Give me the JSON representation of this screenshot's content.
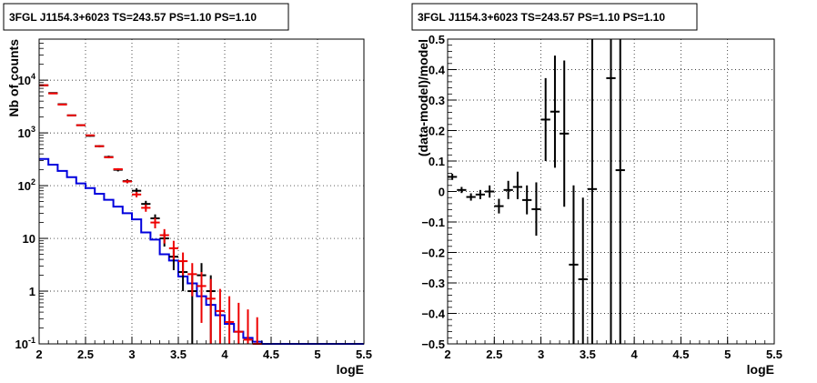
{
  "chart_data": [
    {
      "type": "line",
      "title": "3FGL J1154.3+6023 TS=243.57 PS=1.10 PS=1.10",
      "xlabel": "logE",
      "ylabel": "Nb of counts",
      "xlim": [
        2,
        5.5
      ],
      "ylim": [
        0.1,
        60000
      ],
      "yscale": "log",
      "grid": true,
      "x_ticks": [
        "2",
        "2.5",
        "3",
        "3.5",
        "4",
        "4.5",
        "5",
        "5.5"
      ],
      "y_ticks": [
        {
          "v": 0.1,
          "label": "10",
          "exp": "-1"
        },
        {
          "v": 1,
          "label": "1",
          "exp": ""
        },
        {
          "v": 10,
          "label": "10",
          "exp": ""
        },
        {
          "v": 100,
          "label": "10",
          "exp": "2"
        },
        {
          "v": 1000,
          "label": "10",
          "exp": "3"
        },
        {
          "v": 10000,
          "label": "10",
          "exp": "4"
        }
      ],
      "colors": {
        "data": "#000000",
        "model_total": "#ee0000",
        "model_source": "#0000dd"
      },
      "data_points": [
        {
          "x": 2.05,
          "y": 8000,
          "lo": 7850,
          "hi": 8150
        },
        {
          "x": 2.15,
          "y": 5700,
          "lo": 5580,
          "hi": 5820
        },
        {
          "x": 2.25,
          "y": 3500,
          "lo": 3420,
          "hi": 3580
        },
        {
          "x": 2.35,
          "y": 2150,
          "lo": 2090,
          "hi": 2210
        },
        {
          "x": 2.45,
          "y": 1400,
          "lo": 1350,
          "hi": 1450
        },
        {
          "x": 2.55,
          "y": 880,
          "lo": 850,
          "hi": 910
        },
        {
          "x": 2.65,
          "y": 560,
          "lo": 535,
          "hi": 585
        },
        {
          "x": 2.75,
          "y": 350,
          "lo": 330,
          "hi": 370
        },
        {
          "x": 2.85,
          "y": 200,
          "lo": 186,
          "hi": 214
        },
        {
          "x": 2.95,
          "y": 122,
          "lo": 111,
          "hi": 133
        },
        {
          "x": 3.05,
          "y": 80,
          "lo": 71,
          "hi": 89
        },
        {
          "x": 3.15,
          "y": 45,
          "lo": 38.5,
          "hi": 51.5
        },
        {
          "x": 3.25,
          "y": 24,
          "lo": 19.5,
          "hi": 28.5
        },
        {
          "x": 3.35,
          "y": 10,
          "lo": 7,
          "hi": 13
        },
        {
          "x": 3.45,
          "y": 4.5,
          "lo": 2.5,
          "hi": 6.5
        },
        {
          "x": 3.55,
          "y": 2.3,
          "lo": 1.0,
          "hi": 3.6
        },
        {
          "x": 3.65,
          "y": 1.0,
          "lo": 0.1,
          "hi": 2.0
        },
        {
          "x": 3.75,
          "y": 2.0,
          "lo": 0.6,
          "hi": 3.4
        },
        {
          "x": 3.85,
          "y": 1.0,
          "lo": 0.1,
          "hi": 2.0
        }
      ],
      "model_points": [
        {
          "x": 2.05,
          "y": 8000,
          "lo": 7900,
          "hi": 8100
        },
        {
          "x": 2.15,
          "y": 5600,
          "lo": 5520,
          "hi": 5680
        },
        {
          "x": 2.25,
          "y": 3450,
          "lo": 3400,
          "hi": 3500
        },
        {
          "x": 2.35,
          "y": 2150,
          "lo": 2120,
          "hi": 2180
        },
        {
          "x": 2.45,
          "y": 1400,
          "lo": 1380,
          "hi": 1420
        },
        {
          "x": 2.55,
          "y": 900,
          "lo": 885,
          "hi": 915
        },
        {
          "x": 2.65,
          "y": 560,
          "lo": 550,
          "hi": 570
        },
        {
          "x": 2.75,
          "y": 345,
          "lo": 338,
          "hi": 352
        },
        {
          "x": 2.85,
          "y": 205,
          "lo": 198,
          "hi": 212
        },
        {
          "x": 2.95,
          "y": 120,
          "lo": 112,
          "hi": 128
        },
        {
          "x": 3.05,
          "y": 68,
          "lo": 60,
          "hi": 76
        },
        {
          "x": 3.15,
          "y": 38,
          "lo": 32,
          "hi": 44
        },
        {
          "x": 3.25,
          "y": 20,
          "lo": 15.5,
          "hi": 24.5
        },
        {
          "x": 3.35,
          "y": 11.5,
          "lo": 8,
          "hi": 15
        },
        {
          "x": 3.45,
          "y": 6.5,
          "lo": 4,
          "hi": 9
        },
        {
          "x": 3.55,
          "y": 3.7,
          "lo": 2.0,
          "hi": 5.4
        },
        {
          "x": 3.65,
          "y": 2.1,
          "lo": 0.8,
          "hi": 3.4
        },
        {
          "x": 3.75,
          "y": 1.25,
          "lo": 0.25,
          "hi": 2.3
        },
        {
          "x": 3.85,
          "y": 0.72,
          "lo": 0.1,
          "hi": 1.7
        },
        {
          "x": 3.95,
          "y": 0.42,
          "lo": 0.1,
          "hi": 1.1
        },
        {
          "x": 4.05,
          "y": 0.26,
          "lo": 0.1,
          "hi": 0.8
        },
        {
          "x": 4.15,
          "y": 0.17,
          "lo": 0.1,
          "hi": 0.6
        },
        {
          "x": 4.25,
          "y": 0.12,
          "lo": 0.1,
          "hi": 0.45
        },
        {
          "x": 4.35,
          "y": 0.1,
          "lo": 0.1,
          "hi": 0.32
        }
      ],
      "source_model_step": {
        "edges": [
          2.0,
          2.1,
          2.2,
          2.3,
          2.4,
          2.5,
          2.6,
          2.7,
          2.8,
          2.9,
          3.0,
          3.1,
          3.2,
          3.3,
          3.4,
          3.5,
          3.6,
          3.7,
          3.8,
          3.9,
          4.0,
          4.1,
          4.2,
          4.3,
          4.4,
          4.5,
          5.5
        ],
        "values": [
          320,
          250,
          190,
          145,
          110,
          90,
          70,
          54,
          40,
          30,
          23,
          13,
          9.5,
          5.0,
          3.8,
          1.9,
          1.4,
          0.8,
          0.55,
          0.35,
          0.24,
          0.17,
          0.13,
          0.11,
          0.1,
          0.1
        ]
      }
    },
    {
      "type": "scatter",
      "title": "3FGL J1154.3+6023 TS=243.57 PS=1.10 PS=1.10",
      "xlabel": "logE",
      "ylabel": "(data-model)/model",
      "xlim": [
        2,
        5.5
      ],
      "ylim": [
        -0.5,
        0.5
      ],
      "grid": true,
      "x_ticks": [
        "2",
        "2.5",
        "3",
        "3.5",
        "4",
        "4.5",
        "5",
        "5.5"
      ],
      "y_ticks": [
        {
          "v": -0.5,
          "label": "−0.5"
        },
        {
          "v": -0.4,
          "label": "−0.4"
        },
        {
          "v": -0.3,
          "label": "−0.3"
        },
        {
          "v": -0.2,
          "label": "−0.2"
        },
        {
          "v": -0.1,
          "label": "−0.1"
        },
        {
          "v": 0,
          "label": "0"
        },
        {
          "v": 0.1,
          "label": "0.1"
        },
        {
          "v": 0.2,
          "label": "0.2"
        },
        {
          "v": 0.3,
          "label": "0.3"
        },
        {
          "v": 0.4,
          "label": "0.4"
        },
        {
          "v": 0.5,
          "label": "0.5"
        }
      ],
      "colors": {
        "data": "#000000"
      },
      "points": [
        {
          "x": 2.05,
          "y": 0.048,
          "lo": 0.038,
          "hi": 0.058
        },
        {
          "x": 2.15,
          "y": 0.005,
          "lo": -0.005,
          "hi": 0.015
        },
        {
          "x": 2.25,
          "y": -0.018,
          "lo": -0.03,
          "hi": -0.006
        },
        {
          "x": 2.35,
          "y": -0.01,
          "lo": -0.025,
          "hi": 0.005
        },
        {
          "x": 2.45,
          "y": 0.0,
          "lo": -0.02,
          "hi": 0.02
        },
        {
          "x": 2.55,
          "y": -0.048,
          "lo": -0.072,
          "hi": -0.024
        },
        {
          "x": 2.65,
          "y": 0.005,
          "lo": -0.025,
          "hi": 0.035
        },
        {
          "x": 2.75,
          "y": 0.015,
          "lo": -0.025,
          "hi": 0.065
        },
        {
          "x": 2.85,
          "y": -0.028,
          "lo": -0.075,
          "hi": 0.02
        },
        {
          "x": 2.95,
          "y": -0.058,
          "lo": -0.145,
          "hi": 0.03
        },
        {
          "x": 3.05,
          "y": 0.236,
          "lo": 0.1,
          "hi": 0.372
        },
        {
          "x": 3.15,
          "y": 0.262,
          "lo": 0.078,
          "hi": 0.446
        },
        {
          "x": 3.25,
          "y": 0.19,
          "lo": -0.05,
          "hi": 0.43
        },
        {
          "x": 3.35,
          "y": -0.24,
          "lo": -0.5,
          "hi": 0.02
        },
        {
          "x": 3.45,
          "y": -0.288,
          "lo": -0.5,
          "hi": -0.02
        },
        {
          "x": 3.55,
          "y": 0.008,
          "lo": -0.5,
          "hi": 0.5
        },
        {
          "x": 3.75,
          "y": 0.372,
          "lo": -0.5,
          "hi": 0.5
        },
        {
          "x": 3.85,
          "y": 0.07,
          "lo": -0.5,
          "hi": 0.5
        }
      ]
    }
  ]
}
